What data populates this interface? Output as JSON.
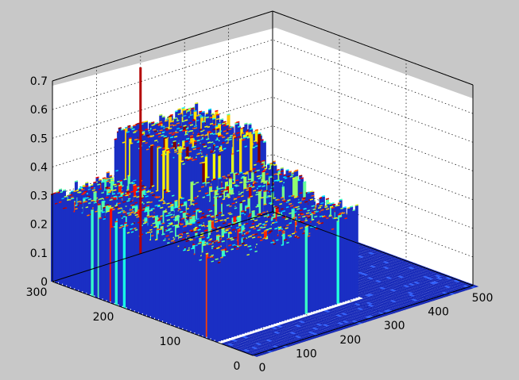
{
  "chart_data": {
    "type": "surface",
    "title": "",
    "xlabel": "",
    "ylabel": "",
    "zlabel": "",
    "grid": true,
    "colormap": "jet",
    "x_ticks": [
      "0",
      "100",
      "200",
      "300",
      "400",
      "500"
    ],
    "y_ticks": [
      "0",
      "100",
      "200",
      "300"
    ],
    "z_ticks": [
      "0",
      "0.1",
      "0.2",
      "0.3",
      "0.4",
      "0.5",
      "0.6",
      "0.7"
    ],
    "xlim": [
      0,
      500
    ],
    "ylim": [
      0,
      300
    ],
    "zlim": [
      0,
      0.7
    ],
    "regions": [
      {
        "x_range": [
          0,
          500
        ],
        "y_range": [
          0,
          300
        ],
        "z": 0.01
      },
      {
        "x_range": [
          0,
          320
        ],
        "y_range": [
          50,
          300
        ],
        "z": 0.3
      },
      {
        "x_range": [
          140,
          320
        ],
        "y_range": [
          130,
          300
        ],
        "z": 0.35
      },
      {
        "x_range": [
          140,
          320
        ],
        "y_range": [
          190,
          300
        ],
        "z": 0.45
      }
    ],
    "peak": {
      "x": 200,
      "y": 300,
      "z": 0.65
    }
  }
}
